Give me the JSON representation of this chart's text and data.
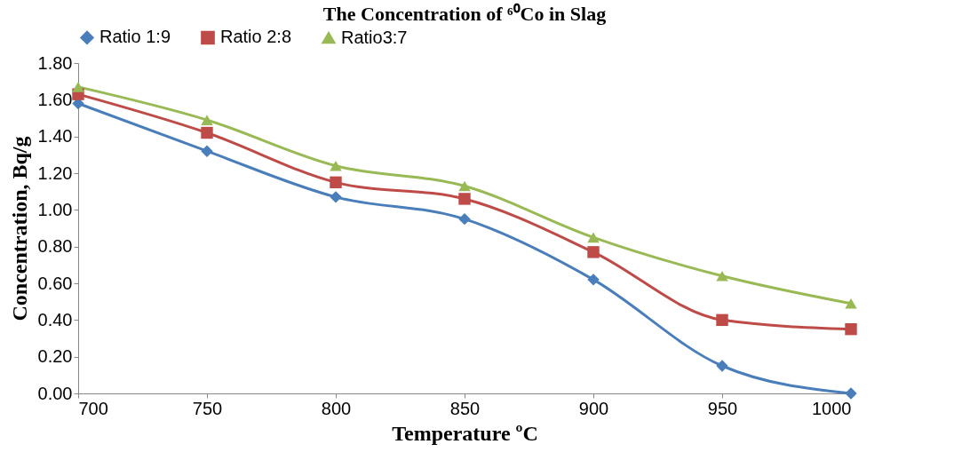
{
  "chart_data": {
    "type": "line",
    "title": "The Concentration of ⁶⁰Co in Slag",
    "xlabel": "Temperature ºC",
    "ylabel": "Concentration, Bq/g",
    "x": [
      700,
      750,
      800,
      850,
      900,
      950,
      1000
    ],
    "series": [
      {
        "name": "Ratio 1:9",
        "color": "#4a7ebb",
        "marker": "diamond",
        "values": [
          1.58,
          1.32,
          1.07,
          0.95,
          0.62,
          0.15,
          0.0
        ]
      },
      {
        "name": "Ratio 2:8",
        "color": "#be4b48",
        "marker": "square",
        "values": [
          1.63,
          1.42,
          1.15,
          1.06,
          0.77,
          0.4,
          0.35
        ]
      },
      {
        "name": "Ratio3:7",
        "color": "#98b954",
        "marker": "triangle",
        "values": [
          1.67,
          1.49,
          1.24,
          1.13,
          0.85,
          0.64,
          0.49
        ]
      }
    ],
    "xlim": [
      700,
      1000
    ],
    "xticks": [
      700,
      750,
      800,
      850,
      900,
      950,
      1000
    ],
    "ylim": [
      0,
      1.8
    ],
    "yticks": [
      {
        "value": 0,
        "label": "0.00"
      },
      {
        "value": 0.2,
        "label": "0.20"
      },
      {
        "value": 0.4,
        "label": "0.40"
      },
      {
        "value": 0.6,
        "label": "0.60"
      },
      {
        "value": 0.8,
        "label": "0.80"
      },
      {
        "value": 1,
        "label": "1.00"
      },
      {
        "value": 1.2,
        "label": "1.20"
      },
      {
        "value": 1.4,
        "label": "1.40"
      },
      {
        "value": 1.6,
        "label": "1.60"
      },
      {
        "value": 1.8,
        "label": "1.80"
      }
    ],
    "grid": false,
    "legend": "top",
    "line_style": "solid"
  }
}
